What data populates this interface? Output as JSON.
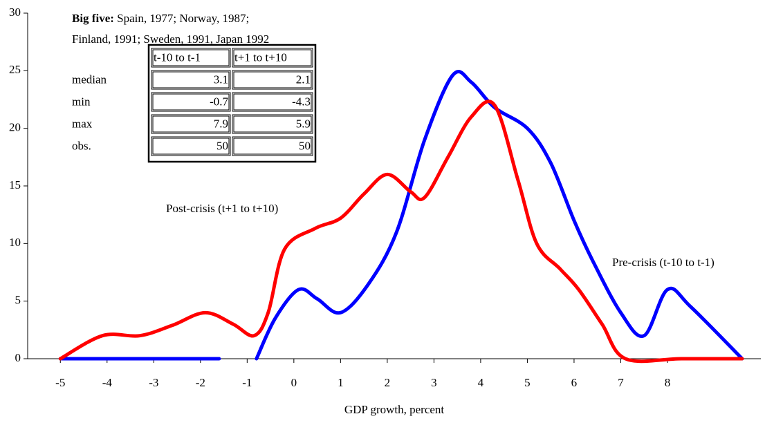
{
  "chart_data": {
    "type": "line",
    "xlabel": "GDP growth, percent",
    "xlim": [
      -5.7,
      10
    ],
    "ylim": [
      0,
      30
    ],
    "xticks": [
      -5,
      -4,
      -3,
      -2,
      -1,
      0,
      1,
      2,
      3,
      4,
      5,
      6,
      7,
      8
    ],
    "yticks": [
      0,
      5,
      10,
      15,
      20,
      25,
      30
    ],
    "series": [
      {
        "name": "Pre-crisis (t-10 to t-1)",
        "color": "#0000ff",
        "x": [
          -5,
          -4,
          -3,
          -2,
          -1.6,
          -1.2,
          -0.8,
          -0.4,
          0.1,
          0.5,
          1.0,
          1.6,
          2.2,
          2.8,
          3.4,
          3.8,
          4.3,
          5.0,
          5.5,
          6.0,
          6.4,
          7.0,
          7.5,
          8.0,
          8.5,
          9.6
        ],
        "values": [
          0,
          0,
          0,
          0,
          0,
          null,
          0,
          3.5,
          6,
          5.2,
          4,
          6.5,
          11,
          19,
          24.6,
          24,
          21.8,
          20,
          17,
          12,
          8.5,
          4,
          2,
          6,
          4.5,
          0
        ]
      },
      {
        "name": "Post-crisis (t+1 to t+10)",
        "color": "#ff0000",
        "x": [
          -5,
          -4.1,
          -3.3,
          -2.6,
          -1.9,
          -1.3,
          -0.85,
          -0.55,
          -0.2,
          0.45,
          1.0,
          1.5,
          2.0,
          2.5,
          2.8,
          3.3,
          3.8,
          4.3,
          4.8,
          5.2,
          5.7,
          6.1,
          6.6,
          7.1,
          8.3,
          9.6
        ],
        "values": [
          0,
          2,
          2,
          2.9,
          4,
          3,
          2,
          4,
          9.5,
          11.3,
          12.2,
          14.3,
          16,
          14.5,
          14,
          17.5,
          21,
          22,
          15.5,
          10,
          7.8,
          6,
          3,
          0,
          0,
          0
        ]
      }
    ],
    "inset": {
      "heading": "Big five:",
      "line1": " Spain, 1977; Norway, 1987;",
      "line2": "Finland, 1991; Sweden, 1991, Japan 1992",
      "columns": [
        "t-10 to t-1",
        "t+1 to t+10"
      ],
      "rows": [
        {
          "label": "median",
          "values": [
            3.1,
            2.1
          ]
        },
        {
          "label": "min",
          "values": [
            -0.7,
            -4.3
          ]
        },
        {
          "label": "max",
          "values": [
            7.9,
            5.9
          ]
        },
        {
          "label": "obs.",
          "values": [
            50,
            50
          ]
        }
      ]
    }
  }
}
